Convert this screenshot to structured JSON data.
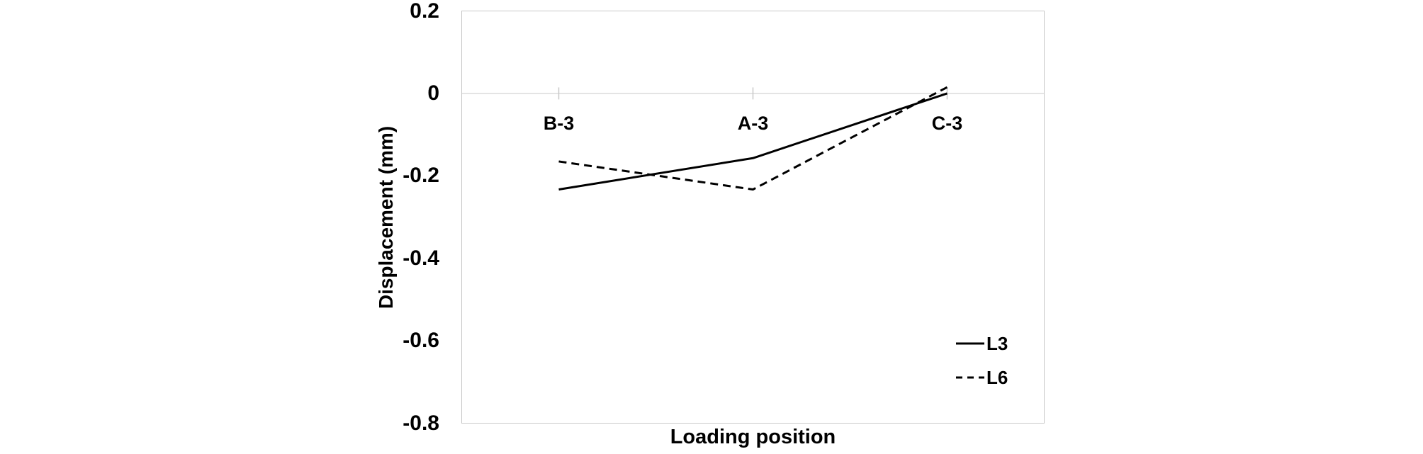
{
  "chart_data": {
    "type": "line",
    "title": "",
    "xlabel": "Loading position",
    "ylabel": "Displacement (mm)",
    "categories": [
      "B-3",
      "A-3",
      "C-3"
    ],
    "series": [
      {
        "name": "L3",
        "style": "solid",
        "color": "#000000",
        "values": [
          -0.233,
          -0.157,
          0.0
        ]
      },
      {
        "name": "L6",
        "style": "dashed",
        "color": "#000000",
        "values": [
          -0.165,
          -0.233,
          0.015
        ]
      }
    ],
    "ylim": [
      -0.8,
      0.2
    ],
    "ytick_step": 0.2,
    "ytick_labels": [
      "0.2",
      "0",
      "-0.2",
      "-0.4",
      "-0.6",
      "-0.8"
    ],
    "grid": "zero-line-only",
    "legend_position": "inside-lower-right",
    "axis_color": "#c9c9c9",
    "text_color": "#000000"
  }
}
